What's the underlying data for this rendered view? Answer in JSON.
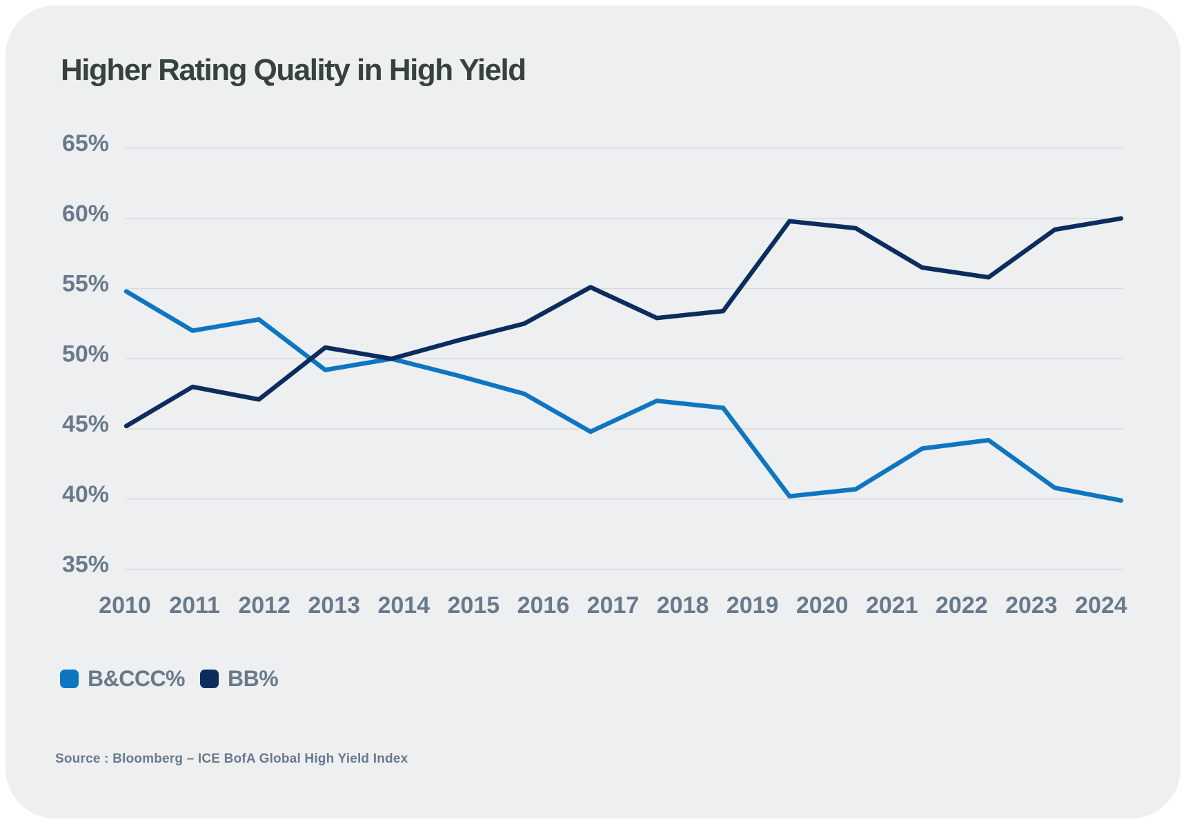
{
  "page": {
    "background_color": "#ffffff",
    "card_background_color": "#edeff1"
  },
  "header": {
    "title": "Higher Rating Quality in High Yield",
    "title_color": "#37423f"
  },
  "chart_data": {
    "type": "line",
    "title": "Higher Rating Quality in High Yield",
    "xlabel": "",
    "ylabel": "",
    "ylim": [
      35,
      65
    ],
    "grid": "horizontal",
    "gridline_color": "#d8dbde",
    "axis_text_color": "#6a7a8c",
    "y_ticks": [
      "65%",
      "60%",
      "55%",
      "50%",
      "45%",
      "40%",
      "35%"
    ],
    "y_tick_values": [
      65,
      60,
      55,
      50,
      45,
      40,
      35
    ],
    "x_tick_labels": [
      "2010",
      "2011",
      "2012",
      "2013",
      "2014",
      "2015",
      "2016",
      "2017",
      "2018",
      "2019",
      "2020",
      "2021",
      "2022",
      "2023",
      "2024"
    ],
    "note_last_point_extends_past_last_label": true,
    "legend_position": "bottom-left",
    "series": [
      {
        "name": "B&CCC%",
        "color": "#0e76c0",
        "values": [
          54.8,
          52.0,
          52.8,
          49.2,
          50.0,
          48.8,
          47.5,
          44.8,
          47.0,
          46.5,
          40.2,
          40.7,
          43.6,
          44.2,
          40.8,
          39.9
        ]
      },
      {
        "name": "BB%",
        "color": "#0b2d5e",
        "values": [
          45.2,
          48.0,
          47.1,
          50.8,
          50.0,
          51.3,
          52.5,
          55.1,
          52.9,
          53.4,
          59.8,
          59.3,
          56.5,
          55.8,
          59.2,
          60.0
        ]
      }
    ]
  },
  "legend": {
    "items": [
      {
        "label": "B&CCC%",
        "color": "#0e76c0"
      },
      {
        "label": "BB%",
        "color": "#0b2d5e"
      }
    ]
  },
  "source": {
    "text": "Source : Bloomberg – ICE BofA Global High Yield Index"
  }
}
